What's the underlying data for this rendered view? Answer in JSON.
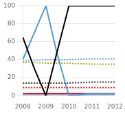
{
  "chart_data": {
    "type": "line",
    "series": [
      {
        "color": "#000000",
        "line_style": "solid",
        "x": [
          2008,
          2008.5,
          2009,
          2009.5,
          2010,
          2011,
          2012
        ],
        "values": [
          65,
          30,
          0,
          50,
          100,
          100,
          100
        ]
      },
      {
        "color": "#5599cc",
        "line_style": "solid",
        "x": [
          2008,
          2008.5,
          2009,
          2009.5,
          2010,
          2011,
          2012
        ],
        "values": [
          40,
          70,
          100,
          45,
          0,
          2,
          2
        ]
      },
      {
        "color": "#990033",
        "line_style": "solid",
        "x": [
          2008,
          2009,
          2010,
          2011,
          2012
        ],
        "values": [
          2,
          2,
          2,
          2,
          2
        ]
      },
      {
        "color": "#aaddee",
        "line_style": "solid",
        "x": [
          2008,
          2009,
          2010,
          2011,
          2012
        ],
        "values": [
          0,
          0,
          0,
          0,
          0
        ]
      },
      {
        "color": "#66bbcc",
        "line_style": "dotted",
        "x": [
          2008,
          2008.5,
          2009,
          2009.5,
          2010,
          2011,
          2012
        ],
        "values": [
          38,
          39,
          40,
          40,
          40,
          41,
          41
        ]
      },
      {
        "color": "#aaaa22",
        "line_style": "dotted",
        "x": [
          2008,
          2008.5,
          2009,
          2009.5,
          2010,
          2011,
          2012
        ],
        "values": [
          37,
          37,
          36,
          36,
          36,
          35,
          35
        ]
      },
      {
        "color": "#333333",
        "line_style": "dotted",
        "x": [
          2008,
          2009,
          2010,
          2011,
          2012
        ],
        "values": [
          14,
          14,
          14,
          15,
          15
        ]
      },
      {
        "color": "#cc2222",
        "line_style": "dotted",
        "x": [
          2008,
          2009,
          2010,
          2011,
          2012
        ],
        "values": [
          9,
          9,
          9,
          9,
          9
        ]
      }
    ],
    "xlim": [
      2008,
      2012
    ],
    "xticks": [
      2008,
      2009,
      2010,
      2011,
      2012
    ],
    "ylim": [
      0,
      100
    ],
    "yticks": [
      0,
      20,
      40,
      60,
      80,
      100
    ],
    "grid": "y"
  }
}
